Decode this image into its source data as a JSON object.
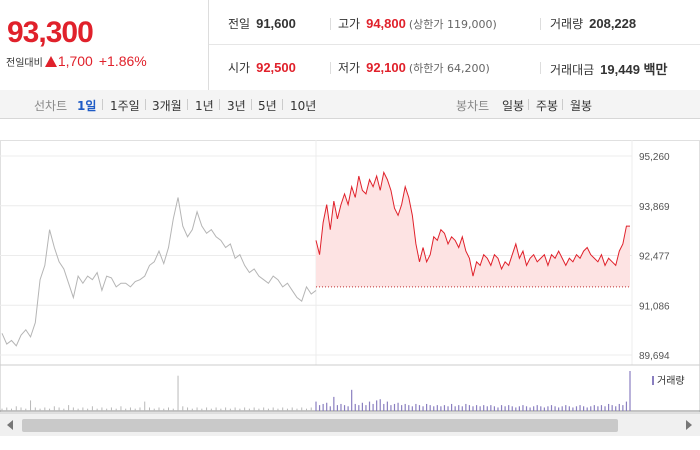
{
  "quote": {
    "price": "93,300",
    "change_label": "전일대비",
    "change_value": "1,700",
    "change_pct": "+1.86%",
    "up_color": "#e0212b"
  },
  "stats": {
    "prev_close": {
      "label": "전일",
      "value": "91,600"
    },
    "high": {
      "label": "고가",
      "value": "94,800",
      "sub": "(상한가 119,000)"
    },
    "volume": {
      "label": "거래량",
      "value": "208,228"
    },
    "open": {
      "label": "시가",
      "value": "92,500"
    },
    "low": {
      "label": "저가",
      "value": "92,100",
      "sub": "(하한가 64,200)"
    },
    "amount": {
      "label": "거래대금",
      "value": "19,449 백만"
    }
  },
  "tabs": {
    "line_chart_label": "선차트",
    "periods": [
      "1일",
      "1주일",
      "3개월",
      "1년",
      "3년",
      "5년",
      "10년"
    ],
    "active_period": "1일",
    "candle_chart_label": "봉차트",
    "candles": [
      "일봉",
      "주봉",
      "월봉"
    ]
  },
  "chart_data": {
    "type": "line",
    "y_ticks": [
      "95,260",
      "93,869",
      "92,477",
      "91,086",
      "89,694"
    ],
    "ylim": [
      89694,
      95260
    ],
    "reference_line": 91600,
    "volume_label": "거래량",
    "series": [
      {
        "color": "#b5b5b5",
        "values": [
          90300,
          90000,
          90100,
          89950,
          90250,
          90400,
          90200,
          90600,
          91800,
          92200,
          93200,
          92700,
          92300,
          92100,
          91700,
          91300,
          91900,
          91700,
          91900,
          91800,
          92000,
          91500,
          91900,
          91850,
          91600,
          91700,
          91700,
          91600,
          91750,
          91800,
          91900,
          92200,
          92300,
          92600,
          92250,
          92700,
          93500,
          94100,
          93300,
          93000,
          93200,
          93700,
          93300,
          93100,
          93200,
          93000,
          92900,
          92700,
          92800,
          92400,
          92500,
          92200,
          92000,
          92100,
          91900,
          91800,
          91700,
          91900,
          91800,
          91600,
          91700,
          91500,
          91300,
          91200,
          91600,
          91400,
          91500
        ]
      },
      {
        "color": "#e0212b",
        "values": [
          92900,
          92500,
          93400,
          93900,
          93200,
          94000,
          93500,
          93900,
          94200,
          93900,
          94400,
          94100,
          94700,
          94300,
          94200,
          94600,
          94400,
          94700,
          94300,
          94800,
          94600,
          94300,
          93800,
          93600,
          93900,
          94400,
          94100,
          93600,
          92800,
          92300,
          92700,
          92300,
          92500,
          93000,
          92900,
          93200,
          93100,
          92800,
          93000,
          92900,
          92700,
          93000,
          92600,
          92400,
          91900,
          92300,
          92200,
          92500,
          92400,
          92200,
          92500,
          92400,
          92100,
          92300,
          92200,
          92500,
          92800,
          92400,
          92600,
          92200,
          92400,
          92500,
          92300,
          92400,
          92500,
          92200,
          92500,
          92400,
          92600,
          92400,
          92200,
          92400,
          92300,
          92500,
          92400,
          92600,
          92700,
          92500,
          92400,
          92300,
          92500,
          92200,
          92400,
          92300,
          92200,
          92600,
          92800,
          93300,
          93300
        ]
      }
    ],
    "volume": {
      "gray": [
        2,
        3,
        2,
        4,
        3,
        2,
        9,
        3,
        2,
        3,
        2,
        4,
        3,
        2,
        5,
        3,
        2,
        3,
        2,
        4,
        2,
        3,
        2,
        3,
        2,
        4,
        2,
        3,
        2,
        3,
        8,
        3,
        2,
        3,
        2,
        3,
        2,
        30,
        4,
        3,
        2,
        3,
        2,
        3,
        2,
        3,
        2,
        3,
        2,
        3,
        2,
        3,
        2,
        3,
        2,
        3,
        2,
        3,
        2,
        3,
        2,
        3,
        2,
        3,
        2,
        3,
        2
      ],
      "purple": [
        8,
        5,
        6,
        7,
        4,
        12,
        5,
        6,
        5,
        4,
        18,
        6,
        5,
        7,
        5,
        8,
        6,
        9,
        10,
        6,
        8,
        5,
        6,
        7,
        5,
        6,
        5,
        4,
        6,
        5,
        4,
        6,
        5,
        4,
        5,
        4,
        5,
        4,
        6,
        4,
        5,
        4,
        6,
        5,
        4,
        5,
        4,
        5,
        4,
        5,
        4,
        3,
        5,
        4,
        5,
        4,
        3,
        4,
        5,
        4,
        3,
        4,
        5,
        4,
        3,
        4,
        5,
        4,
        3,
        4,
        5,
        4,
        3,
        4,
        5,
        4,
        3,
        4,
        5,
        4,
        5,
        4,
        6,
        5,
        4,
        6,
        5,
        8,
        34
      ]
    }
  }
}
